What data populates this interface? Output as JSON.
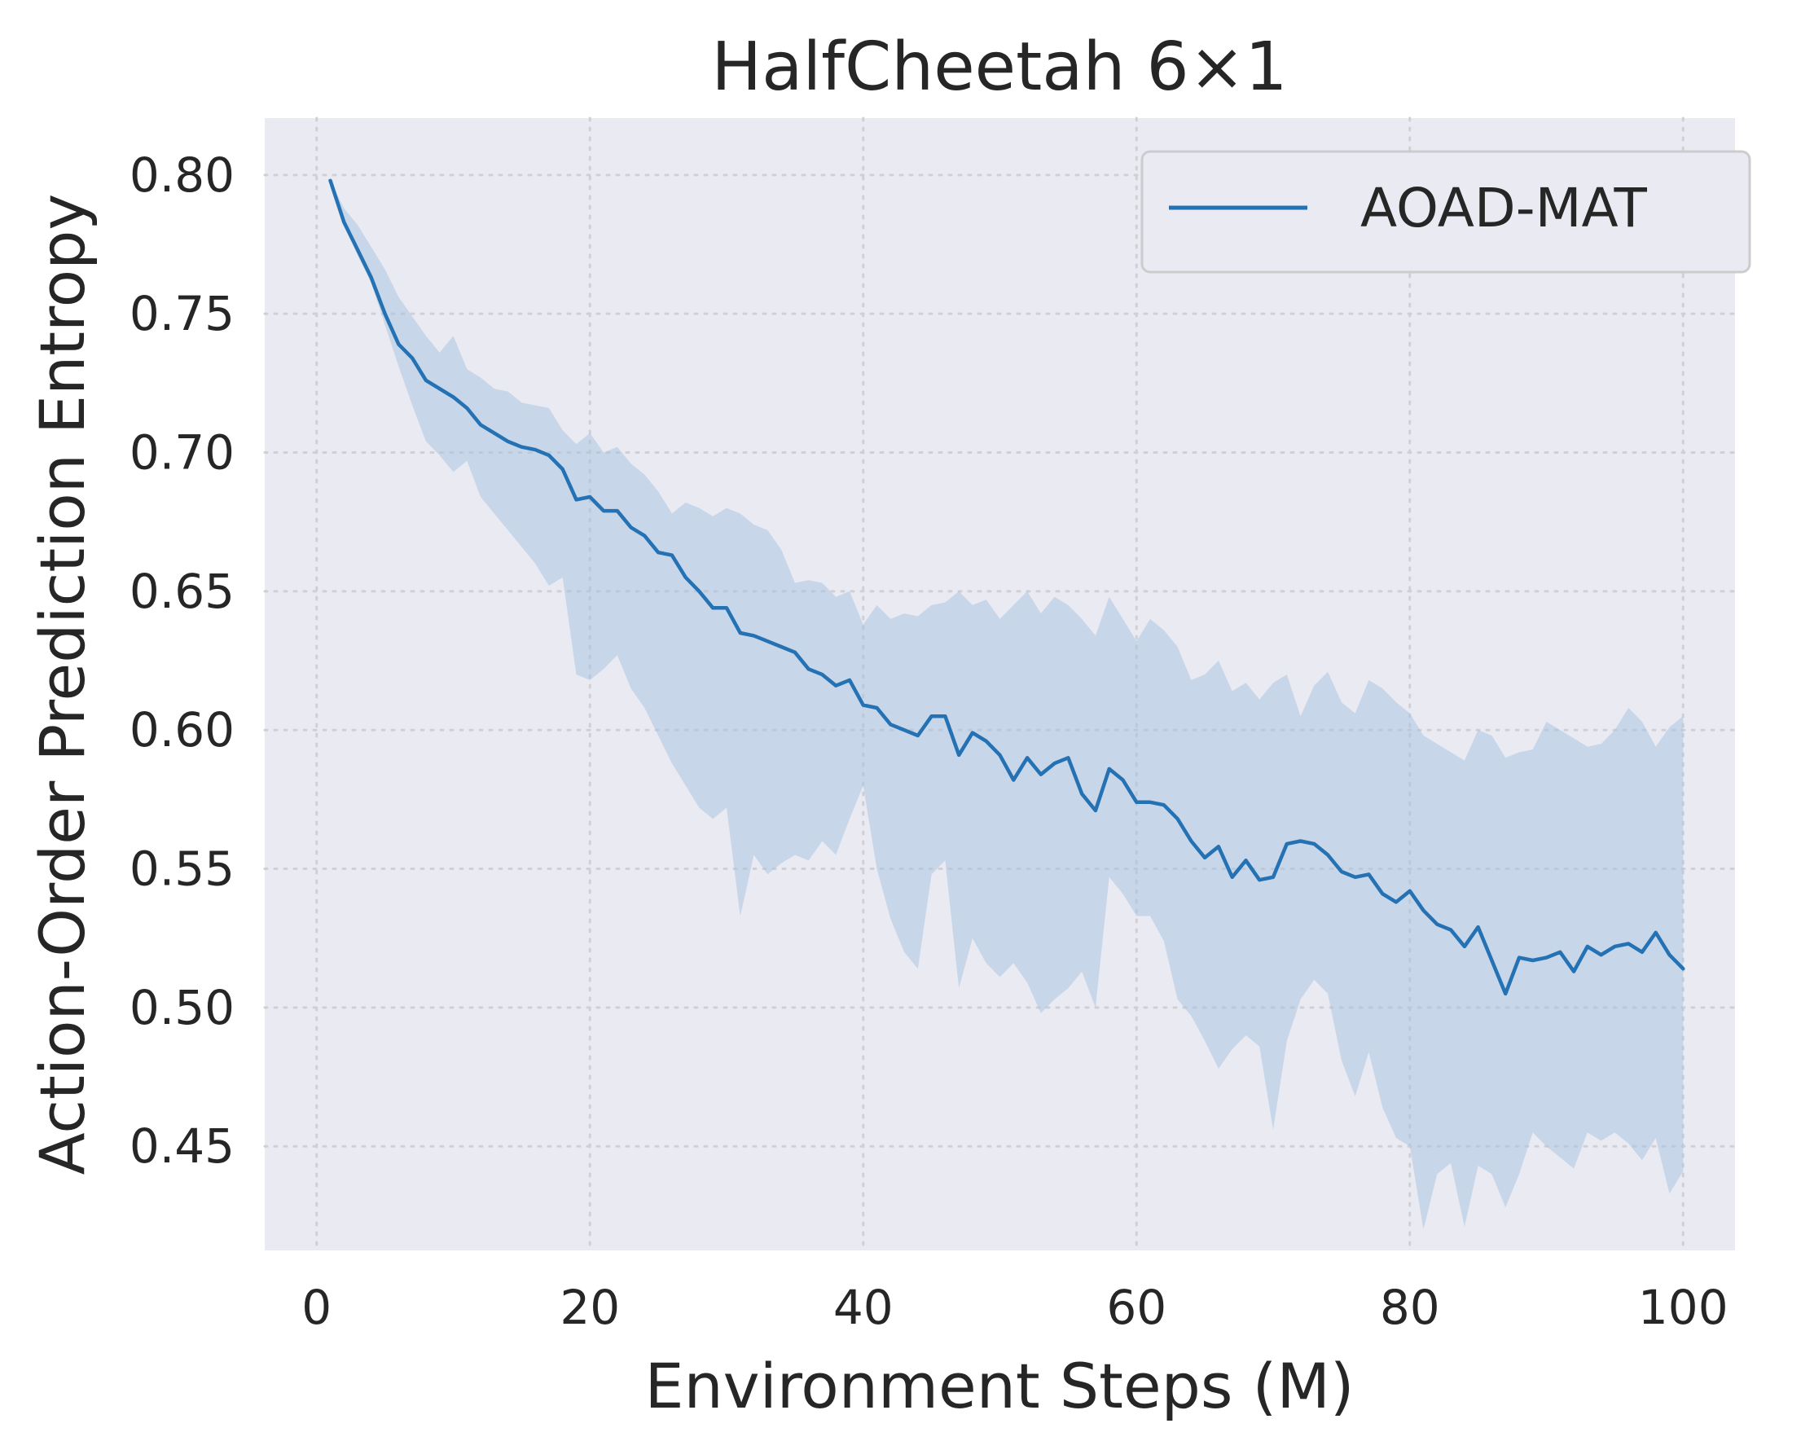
{
  "chart_data": {
    "type": "line",
    "title": "HalfCheetah 6×1",
    "xlabel": "Environment Steps (M)",
    "ylabel": "Action-Order Prediction Entropy",
    "xlim": [
      -3.8,
      103.8
    ],
    "ylim": [
      0.4125,
      0.8205
    ],
    "xticks": [
      0,
      20,
      40,
      60,
      80,
      100
    ],
    "xtick_labels": [
      "0",
      "20",
      "40",
      "60",
      "80",
      "100"
    ],
    "yticks": [
      0.45,
      0.5,
      0.55,
      0.6,
      0.65,
      0.7,
      0.75,
      0.8
    ],
    "ytick_labels": [
      "0.45",
      "0.50",
      "0.55",
      "0.60",
      "0.65",
      "0.70",
      "0.75",
      "0.80"
    ],
    "grid": true,
    "legend_position": "top-right",
    "colors": {
      "plot_background": "#eaeaf2",
      "line": "#2471b3",
      "band": "#a9c4e0",
      "grid": "#cfcfd4"
    },
    "series": [
      {
        "name": "AOAD-MAT",
        "x": [
          1,
          2,
          3,
          4,
          5,
          6,
          7,
          8,
          9,
          10,
          11,
          12,
          13,
          14,
          15,
          16,
          17,
          18,
          19,
          20,
          21,
          22,
          23,
          24,
          25,
          26,
          27,
          28,
          29,
          30,
          31,
          32,
          33,
          34,
          35,
          36,
          37,
          38,
          39,
          40,
          41,
          42,
          43,
          44,
          45,
          46,
          47,
          48,
          49,
          50,
          51,
          52,
          53,
          54,
          55,
          56,
          57,
          58,
          59,
          60,
          61,
          62,
          63,
          64,
          65,
          66,
          67,
          68,
          69,
          70,
          71,
          72,
          73,
          74,
          75,
          76,
          77,
          78,
          79,
          80,
          81,
          82,
          83,
          84,
          85,
          86,
          87,
          88,
          89,
          90,
          91,
          92,
          93,
          94,
          95,
          96,
          97,
          98,
          99,
          100
        ],
        "mean": [
          0.798,
          0.783,
          0.773,
          0.763,
          0.75,
          0.739,
          0.734,
          0.726,
          0.723,
          0.72,
          0.716,
          0.71,
          0.707,
          0.704,
          0.702,
          0.701,
          0.699,
          0.694,
          0.683,
          0.684,
          0.679,
          0.679,
          0.673,
          0.67,
          0.664,
          0.663,
          0.655,
          0.65,
          0.644,
          0.644,
          0.635,
          0.634,
          0.632,
          0.63,
          0.628,
          0.622,
          0.62,
          0.616,
          0.618,
          0.609,
          0.608,
          0.602,
          0.6,
          0.598,
          0.605,
          0.605,
          0.591,
          0.599,
          0.596,
          0.591,
          0.582,
          0.59,
          0.584,
          0.588,
          0.59,
          0.577,
          0.571,
          0.586,
          0.582,
          0.574,
          0.574,
          0.573,
          0.568,
          0.56,
          0.554,
          0.558,
          0.547,
          0.553,
          0.546,
          0.547,
          0.559,
          0.56,
          0.559,
          0.555,
          0.549,
          0.547,
          0.548,
          0.541,
          0.538,
          0.542,
          0.535,
          0.53,
          0.528,
          0.522,
          0.529,
          0.517,
          0.505,
          0.518,
          0.517,
          0.518,
          0.52,
          0.513,
          0.522,
          0.519,
          0.522,
          0.523,
          0.52,
          0.527,
          0.519,
          0.514
        ],
        "upper": [
          0.798,
          0.788,
          0.782,
          0.774,
          0.766,
          0.756,
          0.749,
          0.742,
          0.736,
          0.742,
          0.73,
          0.727,
          0.723,
          0.722,
          0.718,
          0.717,
          0.716,
          0.708,
          0.703,
          0.707,
          0.7,
          0.702,
          0.696,
          0.692,
          0.686,
          0.678,
          0.682,
          0.68,
          0.677,
          0.68,
          0.678,
          0.674,
          0.672,
          0.665,
          0.653,
          0.654,
          0.653,
          0.648,
          0.65,
          0.638,
          0.645,
          0.64,
          0.642,
          0.641,
          0.645,
          0.646,
          0.65,
          0.645,
          0.647,
          0.64,
          0.645,
          0.65,
          0.642,
          0.648,
          0.645,
          0.64,
          0.634,
          0.648,
          0.64,
          0.632,
          0.64,
          0.636,
          0.63,
          0.618,
          0.62,
          0.625,
          0.614,
          0.617,
          0.611,
          0.617,
          0.62,
          0.605,
          0.616,
          0.621,
          0.61,
          0.606,
          0.618,
          0.615,
          0.61,
          0.606,
          0.598,
          0.595,
          0.592,
          0.589,
          0.6,
          0.598,
          0.59,
          0.592,
          0.593,
          0.603,
          0.6,
          0.597,
          0.594,
          0.595,
          0.6,
          0.608,
          0.603,
          0.594,
          0.601,
          0.605
        ],
        "lower": [
          0.798,
          0.782,
          0.771,
          0.761,
          0.746,
          0.731,
          0.717,
          0.704,
          0.699,
          0.693,
          0.697,
          0.684,
          0.678,
          0.672,
          0.666,
          0.66,
          0.652,
          0.655,
          0.62,
          0.618,
          0.622,
          0.627,
          0.615,
          0.608,
          0.598,
          0.588,
          0.58,
          0.572,
          0.568,
          0.572,
          0.533,
          0.555,
          0.548,
          0.552,
          0.555,
          0.553,
          0.56,
          0.555,
          0.568,
          0.58,
          0.55,
          0.532,
          0.52,
          0.514,
          0.548,
          0.553,
          0.507,
          0.525,
          0.516,
          0.511,
          0.516,
          0.509,
          0.498,
          0.503,
          0.507,
          0.513,
          0.5,
          0.547,
          0.541,
          0.533,
          0.533,
          0.524,
          0.503,
          0.497,
          0.488,
          0.478,
          0.485,
          0.49,
          0.486,
          0.456,
          0.488,
          0.503,
          0.51,
          0.505,
          0.481,
          0.468,
          0.484,
          0.464,
          0.453,
          0.45,
          0.42,
          0.44,
          0.444,
          0.421,
          0.443,
          0.44,
          0.428,
          0.44,
          0.455,
          0.45,
          0.446,
          0.442,
          0.455,
          0.452,
          0.455,
          0.451,
          0.445,
          0.453,
          0.433,
          0.441
        ]
      }
    ]
  }
}
